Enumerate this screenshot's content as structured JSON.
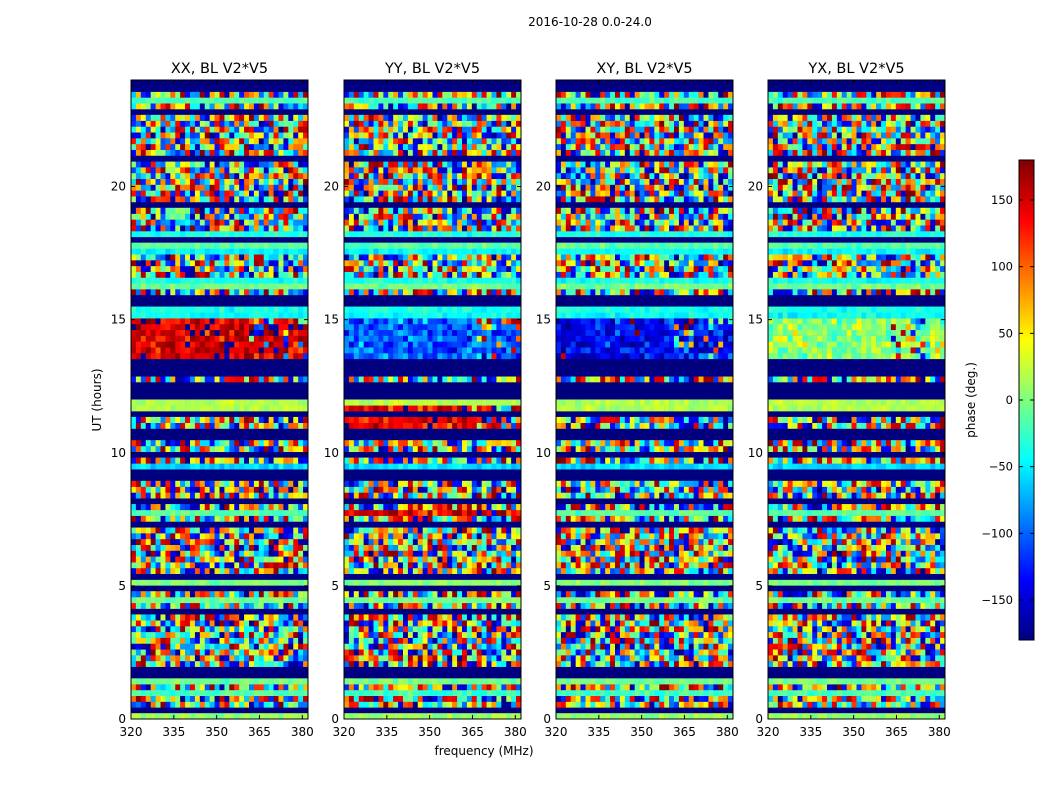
{
  "chart_data": {
    "type": "heatmap",
    "title": "2016-10-28 0.0-24.0",
    "xlabel": "frequency (MHz)",
    "ylabel": "UT (hours)",
    "xlim": [
      320,
      382
    ],
    "ylim": [
      0,
      24
    ],
    "xticks": [
      320,
      335,
      350,
      365,
      380
    ],
    "yticks": [
      0,
      5,
      10,
      15,
      20
    ],
    "colorbar": {
      "label": "phase (deg.)",
      "range": [
        -180,
        180
      ],
      "ticks": [
        -150,
        -100,
        -50,
        0,
        50,
        100,
        150
      ],
      "tick_labels": [
        "−150",
        "−100",
        "−50",
        "0",
        "50",
        "100",
        "150"
      ],
      "colormap": "jet",
      "colors": [
        "#00007f",
        "#0000ff",
        "#007fff",
        "#00ffff",
        "#7fff7f",
        "#ffff00",
        "#ff7f00",
        "#ff0000",
        "#7f0000"
      ]
    },
    "panels": [
      {
        "title": "XX, BL V2*V5"
      },
      {
        "title": "YY, BL V2*V5"
      },
      {
        "title": "XY, BL V2*V5"
      },
      {
        "title": "YX, BL V2*V5"
      }
    ],
    "flagged_bands_hours": [
      [
        0.2,
        0.4
      ],
      [
        1.5,
        1.8
      ],
      [
        3.9,
        4.1
      ],
      [
        4.9,
        5.1
      ],
      [
        8.1,
        8.3
      ],
      [
        9.0,
        9.4
      ],
      [
        9.9,
        10.0
      ],
      [
        10.5,
        11.0
      ],
      [
        11.3,
        11.6
      ],
      [
        11.9,
        12.6
      ],
      [
        13.2,
        13.5
      ],
      [
        15.6,
        15.9
      ],
      [
        17.9,
        18.2
      ],
      [
        19.1,
        19.4
      ],
      [
        22.6,
        22.9
      ],
      [
        23.8,
        24.0
      ]
    ],
    "features": [
      {
        "panel": 0,
        "hours": [
          13.6,
          15.0
        ],
        "phase_deg": 150,
        "note": "coherent red band"
      },
      {
        "panel": 1,
        "hours": [
          13.6,
          15.0
        ],
        "phase_deg": -100,
        "note": "coherent blue/cyan band"
      },
      {
        "panel": 1,
        "hours": [
          10.6,
          11.7
        ],
        "phase_deg": 140,
        "note": "red streaks"
      },
      {
        "panel": 1,
        "hours": [
          7.6,
          7.9
        ],
        "phase_deg": 140,
        "note": "red streak"
      },
      {
        "panel": 2,
        "hours": [
          13.6,
          15.0
        ],
        "phase_deg": -140,
        "note": "blue band"
      },
      {
        "panel": 3,
        "hours": [
          13.6,
          15.0
        ],
        "phase_deg": 5,
        "note": "green/yellow band"
      }
    ]
  }
}
